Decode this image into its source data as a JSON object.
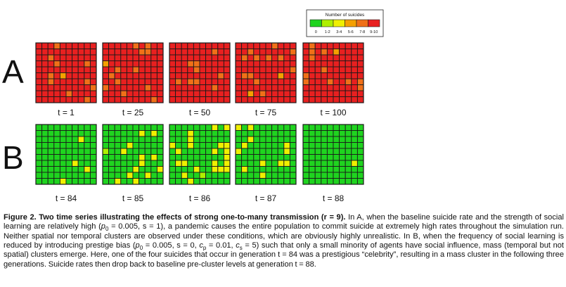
{
  "figure": {
    "legend": {
      "title": "Number of suicides",
      "bins": [
        {
          "label": "0",
          "color": "#1fd41f"
        },
        {
          "label": "1-2",
          "color": "#aef000"
        },
        {
          "label": "3-4",
          "color": "#f0f000"
        },
        {
          "label": "5-6",
          "color": "#f5a000"
        },
        {
          "label": "7-8",
          "color": "#f07018"
        },
        {
          "label": "9-10",
          "color": "#e82020"
        }
      ]
    },
    "grid_line_color": "#1a1a1a",
    "rows": [
      {
        "label": "A",
        "panels": [
          {
            "time_label": "t = 1",
            "dominant": "9-10",
            "other_cells": {
              "7-8": 10,
              "5-6": 1
            }
          },
          {
            "time_label": "t = 25",
            "dominant": "9-10",
            "other_cells": {
              "7-8": 12,
              "5-6": 1
            }
          },
          {
            "time_label": "t = 50",
            "dominant": "9-10",
            "other_cells": {
              "7-8": 9
            }
          },
          {
            "time_label": "t = 75",
            "dominant": "9-10",
            "other_cells": {
              "7-8": 12,
              "5-6": 2
            }
          },
          {
            "time_label": "t = 100",
            "dominant": "9-10",
            "other_cells": {
              "7-8": 11,
              "5-6": 1
            }
          }
        ]
      },
      {
        "label": "B",
        "panels": [
          {
            "time_label": "t = 84",
            "dominant": "0",
            "other_cells": {
              "3-4": 4
            }
          },
          {
            "time_label": "t = 85",
            "dominant": "0",
            "other_cells": {
              "3-4": 13,
              "1-2": 1
            }
          },
          {
            "time_label": "t = 86",
            "dominant": "0",
            "other_cells": {
              "3-4": 22,
              "1-2": 1
            }
          },
          {
            "time_label": "t = 87",
            "dominant": "0",
            "other_cells": {
              "3-4": 12
            }
          },
          {
            "time_label": "t = 88",
            "dominant": "0",
            "other_cells": {
              "3-4": 1
            }
          }
        ]
      }
    ]
  },
  "caption": {
    "title": "Figure 2. Two time series illustrating the effects of strong one-to-many transmission (r = 9).",
    "s1": "In A, when the baseline suicide rate and the strength of social learning are relatively high (",
    "s2": " = 0.005, s = 1), a pandemic causes the entire population to commit suicide at extremely high rates throughout the simulation run. Neither spatial nor temporal clusters are observed under these conditions, which are obviously highly unrealistic. In B, when the frequency of social learning is reduced by introducing prestige bias (",
    "s3": " = 0.005, s = 0, ",
    "s4": " = 0.01, ",
    "s5": " = 5) such that only a small minority of agents have social influence, mass (temporal but not spatial) clusters emerge. Here, one of the four suicides that occur in generation t = 84 was a prestigious “celebrity”, resulting in a mass cluster in the following three generations. Suicide rates then drop back to baseline pre-cluster levels at generation t = 88.",
    "sym_p": "p",
    "sub_0": "0",
    "sym_c": "c",
    "sub_p": "p",
    "sub_s": "s"
  }
}
